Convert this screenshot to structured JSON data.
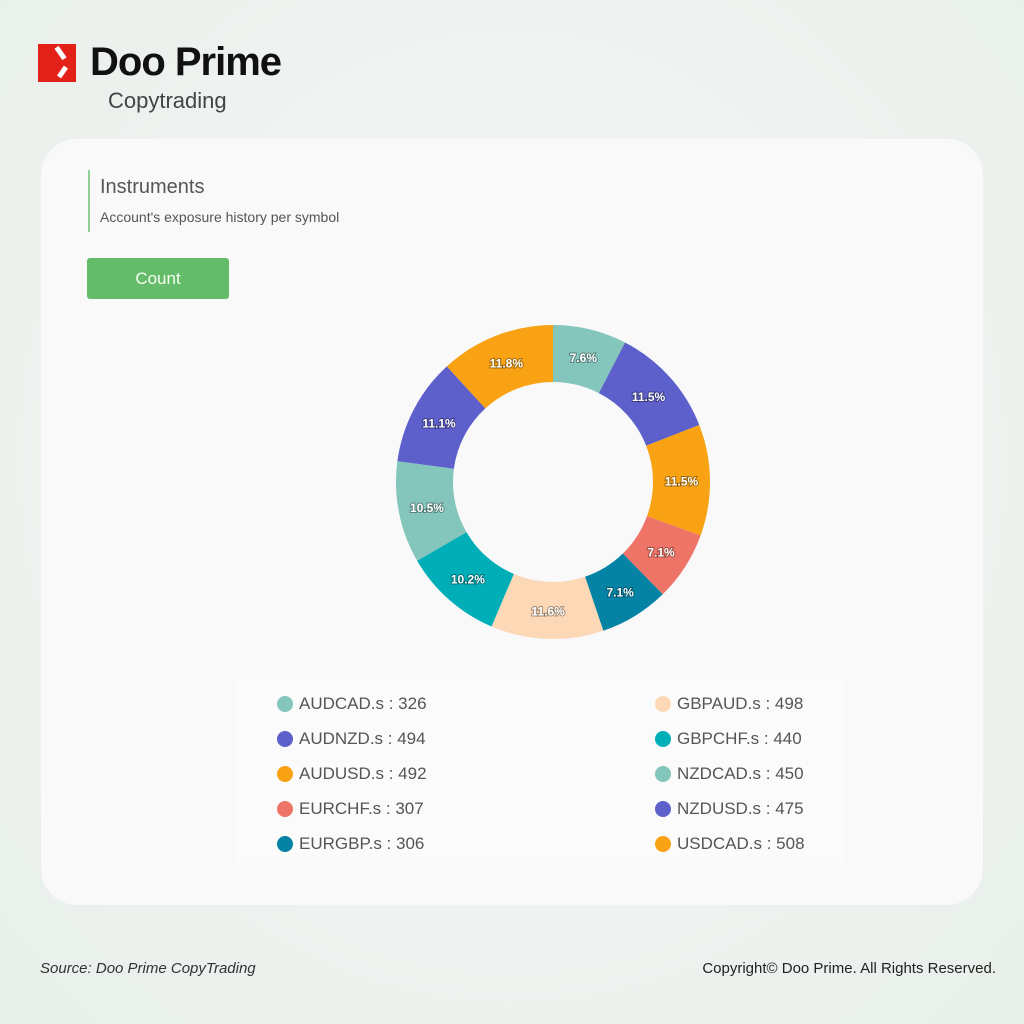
{
  "brand": {
    "name": "Doo Prime",
    "subtitle": "Copytrading"
  },
  "panel": {
    "title": "Instruments",
    "subtitle": "Account's exposure history per symbol",
    "count_button": "Count"
  },
  "chart_data": {
    "type": "pie",
    "donut": true,
    "categories": [
      "AUDCAD.s",
      "AUDNZD.s",
      "AUDUSD.s",
      "EURCHF.s",
      "EURGBP.s",
      "GBPAUD.s",
      "GBPCHF.s",
      "NZDCAD.s",
      "NZDUSD.s",
      "USDCAD.s"
    ],
    "values": [
      326,
      494,
      492,
      307,
      306,
      498,
      440,
      450,
      475,
      508
    ],
    "percent_labels": [
      "7.6%",
      "11.5%",
      "11.5%",
      "7.1%",
      "7.1%",
      "11.6%",
      "10.2%",
      "10.5%",
      "11.1%",
      "11.8%"
    ],
    "colors": [
      "#84c5bc",
      "#5d5fcb",
      "#f9a213",
      "#ef7468",
      "#0583a5",
      "#fdd8b6",
      "#00aeb8",
      "#84c5bc",
      "#5d5fcb",
      "#f9a213"
    ],
    "legend_labels": [
      "AUDCAD.s : 326",
      "AUDNZD.s : 494",
      "AUDUSD.s : 492",
      "EURCHF.s : 307",
      "EURGBP.s : 306",
      "GBPAUD.s : 498",
      "GBPCHF.s : 440",
      "NZDCAD.s : 450",
      "NZDUSD.s : 475",
      "USDCAD.s : 508"
    ],
    "legend_placement": "bottom"
  },
  "footer": {
    "source": "Source: Doo Prime CopyTrading",
    "copyright": "Copyright© Doo Prime. All Rights Reserved."
  }
}
